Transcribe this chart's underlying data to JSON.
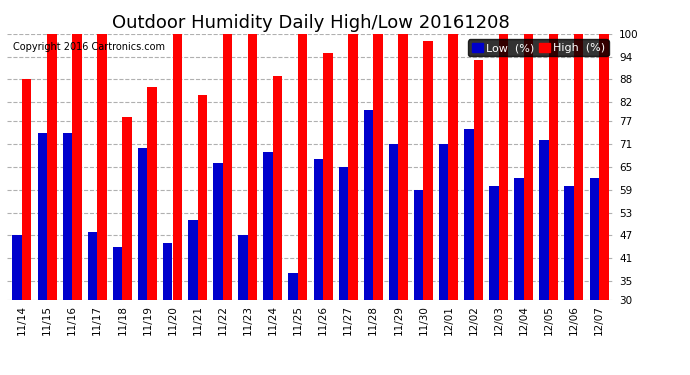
{
  "title": "Outdoor Humidity Daily High/Low 20161208",
  "copyright": "Copyright 2016 Cartronics.com",
  "ylim": [
    30,
    100
  ],
  "yticks": [
    30,
    35,
    41,
    47,
    53,
    59,
    65,
    71,
    77,
    82,
    88,
    94,
    100
  ],
  "categories": [
    "11/14",
    "11/15",
    "11/16",
    "11/17",
    "11/18",
    "11/19",
    "11/20",
    "11/21",
    "11/22",
    "11/23",
    "11/24",
    "11/25",
    "11/26",
    "11/27",
    "11/28",
    "11/29",
    "11/30",
    "12/01",
    "12/02",
    "12/03",
    "12/04",
    "12/05",
    "12/06",
    "12/07"
  ],
  "high_values": [
    88,
    100,
    100,
    100,
    78,
    86,
    100,
    84,
    100,
    100,
    89,
    100,
    95,
    100,
    100,
    100,
    98,
    100,
    93,
    100,
    100,
    100,
    100,
    100
  ],
  "low_values": [
    47,
    74,
    74,
    48,
    44,
    70,
    45,
    51,
    66,
    47,
    69,
    37,
    67,
    65,
    80,
    71,
    59,
    71,
    75,
    60,
    62,
    72,
    60,
    62
  ],
  "high_color": "#ff0000",
  "low_color": "#0000cc",
  "background_color": "#ffffff",
  "grid_color": "#b0b0b0",
  "bar_width": 0.38,
  "title_fontsize": 13,
  "tick_fontsize": 7.5,
  "copyright_fontsize": 7,
  "legend_fontsize": 8
}
